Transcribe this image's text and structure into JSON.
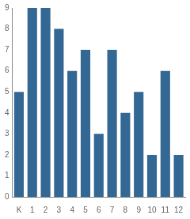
{
  "chart_data": {
    "type": "bar",
    "categories": [
      "K",
      "1",
      "2",
      "3",
      "4",
      "5",
      "6",
      "7",
      "8",
      "9",
      "10",
      "11",
      "12"
    ],
    "values": [
      5,
      9,
      9,
      8,
      6,
      7,
      3,
      7,
      4,
      5,
      2,
      6,
      2
    ],
    "color": "#336794",
    "ylim": [
      0,
      9
    ],
    "yticks": [
      0,
      1,
      2,
      3,
      4,
      5,
      6,
      7,
      8,
      9
    ],
    "grid": false
  }
}
